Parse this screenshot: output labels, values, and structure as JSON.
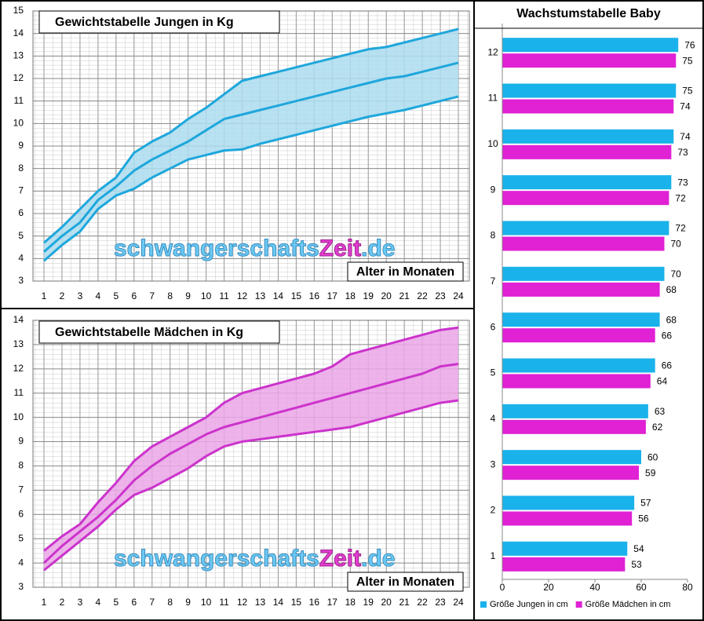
{
  "chart_data": [
    {
      "type": "line",
      "title": "Gewichtstabelle Jungen in Kg",
      "x_label": "Alter in Monaten",
      "watermark": [
        "schwangerschafts",
        "Zeit",
        ".de"
      ],
      "categories": [
        "1",
        "2",
        "3",
        "4",
        "5",
        "6",
        "7",
        "8",
        "9",
        "10",
        "11",
        "12",
        "13",
        "14",
        "15",
        "16",
        "17",
        "18",
        "19",
        "20",
        "21",
        "22",
        "23",
        "24"
      ],
      "series": [
        {
          "color": "#1ea7dc",
          "values": [
            4.7,
            5.4,
            6.2,
            7.0,
            7.6,
            8.7,
            9.2,
            9.6,
            10.2,
            10.7,
            11.3,
            11.9,
            12.1,
            12.3,
            12.5,
            12.7,
            12.9,
            13.1,
            13.3,
            13.4,
            13.6,
            13.8,
            14.0,
            14.2
          ]
        },
        {
          "color": "#1ea7dc",
          "values": [
            4.3,
            5.0,
            5.6,
            6.6,
            7.2,
            7.9,
            8.4,
            8.8,
            9.2,
            9.7,
            10.2,
            10.4,
            10.6,
            10.8,
            11.0,
            11.2,
            11.4,
            11.6,
            11.8,
            12.0,
            12.1,
            12.3,
            12.5,
            12.7
          ]
        },
        {
          "color": "#1ea7dc",
          "values": [
            3.9,
            4.6,
            5.2,
            6.2,
            6.8,
            7.1,
            7.6,
            8.0,
            8.4,
            8.6,
            8.8,
            8.85,
            9.1,
            9.3,
            9.5,
            9.7,
            9.9,
            10.1,
            10.3,
            10.45,
            10.6,
            10.8,
            11.0,
            11.2
          ]
        }
      ],
      "band_color": "#acdcee",
      "ylim": [
        3,
        15
      ],
      "yticks": [
        3,
        4,
        5,
        6,
        7,
        8,
        9,
        10,
        11,
        12,
        13,
        14,
        15
      ],
      "grid": true
    },
    {
      "type": "line",
      "title": "Gewichtstabelle Mädchen in Kg",
      "x_label": "Alter in Monaten",
      "watermark": [
        "schwangerschafts",
        "Zeit",
        ".de"
      ],
      "categories": [
        "1",
        "2",
        "3",
        "4",
        "5",
        "6",
        "7",
        "8",
        "9",
        "10",
        "11",
        "12",
        "13",
        "14",
        "15",
        "16",
        "17",
        "18",
        "19",
        "20",
        "21",
        "22",
        "23",
        "24"
      ],
      "series": [
        {
          "color": "#cc33cc",
          "values": [
            4.5,
            5.1,
            5.6,
            6.5,
            7.3,
            8.2,
            8.8,
            9.2,
            9.6,
            10.0,
            10.6,
            11.0,
            11.2,
            11.4,
            11.6,
            11.8,
            12.1,
            12.6,
            12.8,
            13.0,
            13.2,
            13.4,
            13.6,
            13.7
          ]
        },
        {
          "color": "#cc33cc",
          "values": [
            4.0,
            4.7,
            5.3,
            5.9,
            6.6,
            7.4,
            8.0,
            8.5,
            8.9,
            9.3,
            9.6,
            9.8,
            10.0,
            10.2,
            10.4,
            10.6,
            10.8,
            11.0,
            11.2,
            11.4,
            11.6,
            11.8,
            12.1,
            12.2
          ]
        },
        {
          "color": "#cc33cc",
          "values": [
            3.7,
            4.3,
            4.9,
            5.5,
            6.2,
            6.8,
            7.1,
            7.5,
            7.9,
            8.4,
            8.8,
            9.0,
            9.1,
            9.2,
            9.3,
            9.4,
            9.5,
            9.6,
            9.8,
            10.0,
            10.2,
            10.4,
            10.6,
            10.7
          ]
        }
      ],
      "band_color": "#eaa6e6",
      "ylim": [
        3,
        14
      ],
      "yticks": [
        3,
        4,
        5,
        6,
        7,
        8,
        9,
        10,
        11,
        12,
        13,
        14
      ],
      "grid": true
    },
    {
      "type": "barh",
      "title": "Wachstumstabelle Baby",
      "categories": [
        "1",
        "2",
        "3",
        "4",
        "5",
        "6",
        "7",
        "8",
        "9",
        "10",
        "11",
        "12"
      ],
      "series": [
        {
          "name": "Größe Jungen in cm",
          "color": "#1ab2ea",
          "values": [
            54,
            57,
            60,
            63,
            66,
            68,
            70,
            72,
            73,
            74,
            75,
            76
          ]
        },
        {
          "name": "Größe Mädchen in cm",
          "color": "#e021d4",
          "values": [
            53,
            56,
            59,
            62,
            64,
            66,
            68,
            70,
            72,
            73,
            74,
            75
          ]
        }
      ],
      "xlim": [
        0,
        80
      ],
      "xticks": [
        0,
        20,
        40,
        60,
        80
      ],
      "legend": "bottom"
    }
  ]
}
